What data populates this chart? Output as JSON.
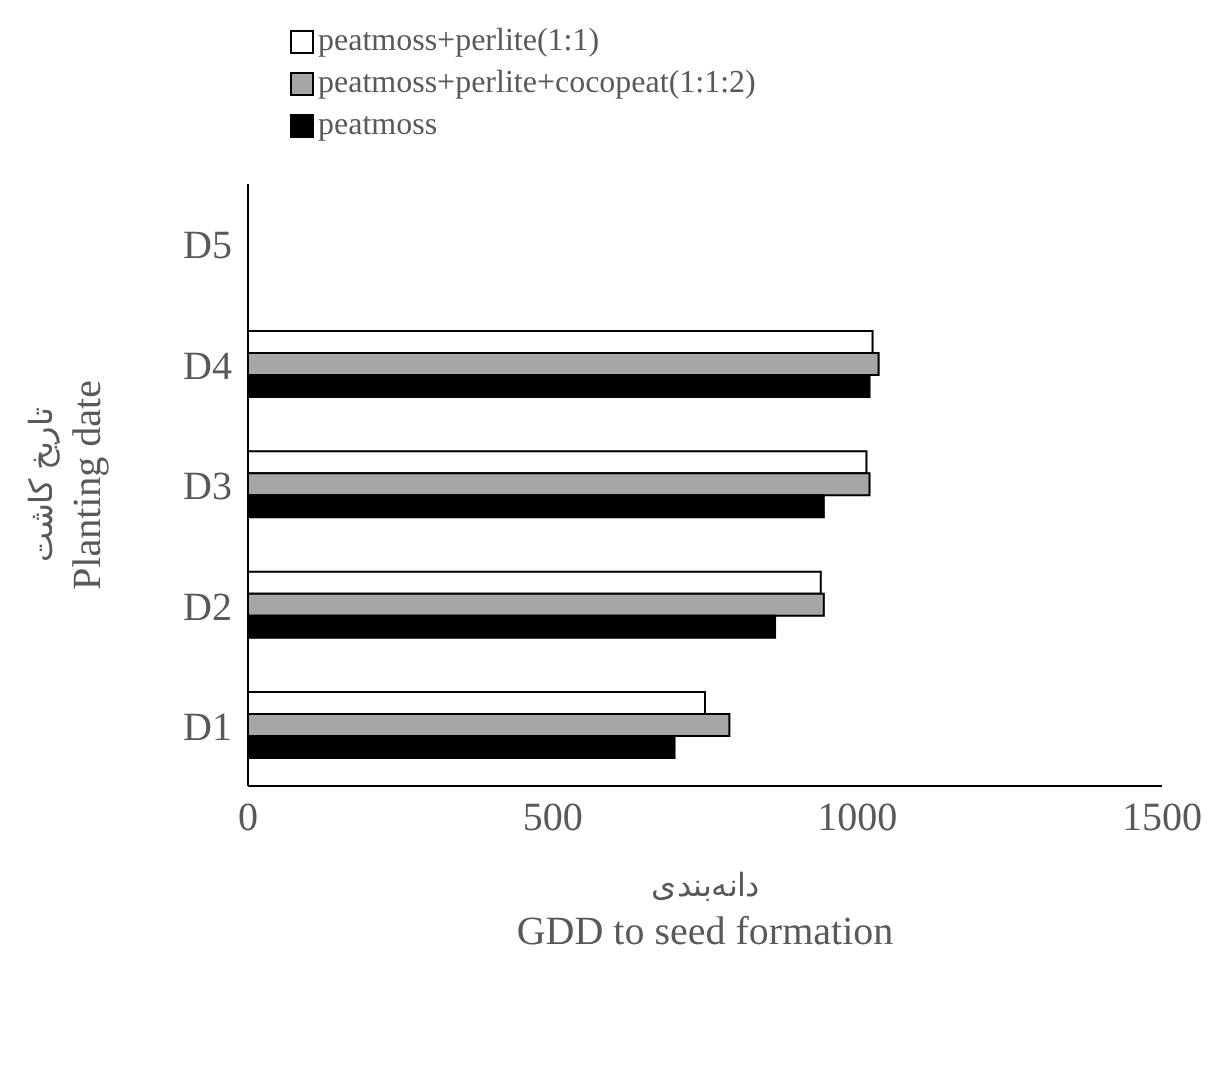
{
  "chart_data": {
    "type": "bar",
    "orientation": "horizontal",
    "categories": [
      "D5",
      "D4",
      "D3",
      "D2",
      "D1"
    ],
    "series": [
      {
        "name": "peatmoss+perlite(1:1)",
        "color": "#ffffff",
        "values": [
          null,
          1025,
          1015,
          940,
          750
        ]
      },
      {
        "name": "peatmoss+perlite+cocopeat(1:1:2)",
        "color": "#a6a6a6",
        "values": [
          null,
          1035,
          1020,
          945,
          790
        ]
      },
      {
        "name": "peatmoss",
        "color": "#000000",
        "values": [
          null,
          1020,
          945,
          865,
          700
        ]
      }
    ],
    "xlim": [
      0,
      1500
    ],
    "xticks": [
      0,
      500,
      1000,
      1500
    ],
    "xlabel": "دانه‌بندی\nGDD to seed formation",
    "ylabel": "تاریخ کاشت\nPlanting date",
    "grid": false,
    "legend": "top"
  }
}
